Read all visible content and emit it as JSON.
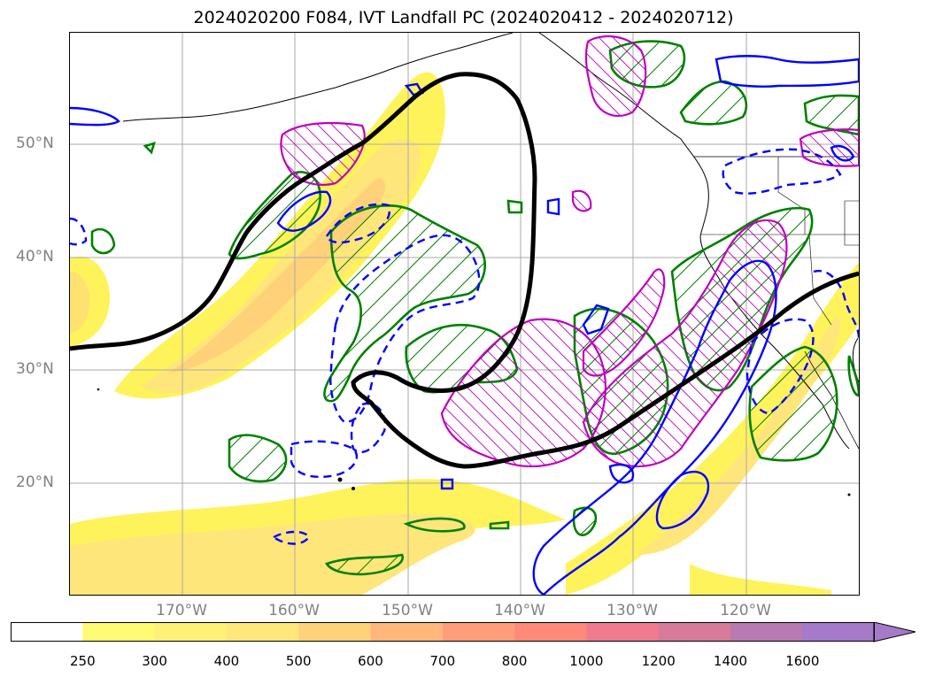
{
  "title": "2024020200 F084, IVT Landfall PC (2024020412 - 2024020712)",
  "axes": {
    "lat_labels": [
      "50°N",
      "40°N",
      "30°N",
      "20°N"
    ],
    "lon_labels": [
      "170°W",
      "160°W",
      "150°W",
      "140°W",
      "130°W",
      "120°W"
    ]
  },
  "colorbar": {
    "levels": [
      "250",
      "300",
      "400",
      "500",
      "600",
      "700",
      "800",
      "1000",
      "1200",
      "1400",
      "1600"
    ],
    "colors": [
      "#ffffff",
      "#fffb73",
      "#fff176",
      "#ffe77a",
      "#ffd27a",
      "#ffb87a",
      "#ff9d7a",
      "#ff8a7a",
      "#f07a8e",
      "#d87a9a",
      "#b87ab2",
      "#a57ac8"
    ],
    "extend": "max"
  },
  "contour_colors": {
    "ivt_fill": "#ffef5a",
    "mean_contour": "#000000",
    "positive_pc_blue": "#0000ff",
    "green_hatch": "#008000",
    "magenta_hatch": "#bf00bf"
  }
}
